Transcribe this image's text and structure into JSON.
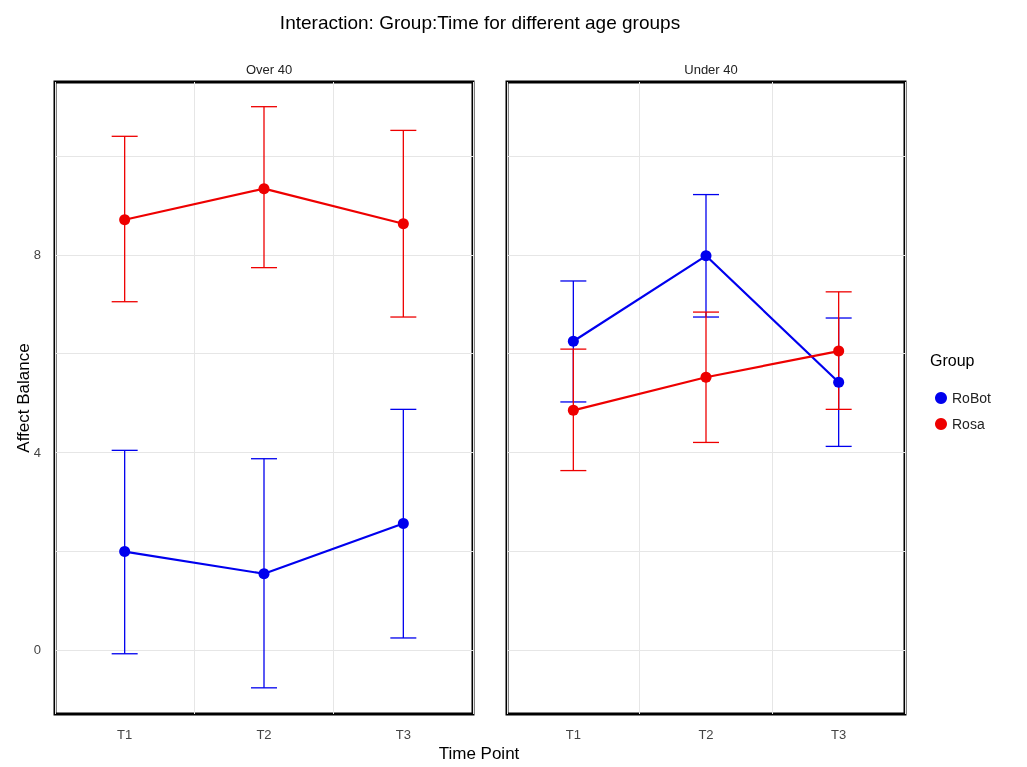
{
  "chart_data": [
    {
      "type": "line",
      "title": "Interaction: Group:Time for different age groups",
      "subtitle": "Over 40",
      "ylabel": "Affect Balance",
      "categories": [
        "T1",
        "T2",
        "T3"
      ],
      "ylim": [
        -1.3,
        11.5
      ],
      "yticks": [
        0,
        {
          "value": 2,
          "label": null
        },
        4,
        {
          "value": 6,
          "label": null
        },
        8,
        {
          "value": 10,
          "label": null
        }
      ],
      "grid": true,
      "marker": "circle",
      "line_style": "solid",
      "series": [
        {
          "color": "#0000ee",
          "values": [
            1.99,
            1.54,
            2.56
          ],
          "errors": [
            [
              -0.08,
              4.04
            ],
            [
              -0.77,
              3.87
            ],
            [
              0.24,
              4.87
            ]
          ]
        },
        {
          "color": "#ee0000",
          "values": [
            8.71,
            9.34,
            8.63
          ],
          "errors": [
            [
              7.05,
              10.4
            ],
            [
              7.74,
              11.0
            ],
            [
              6.74,
              10.52
            ]
          ]
        }
      ]
    },
    {
      "type": "line",
      "subtitle": "Under 40",
      "xlabel": "Time Point",
      "categories": [
        "T1",
        "T2",
        "T3"
      ],
      "ylim": [
        -1.3,
        11.5
      ],
      "yticks": [
        0,
        {
          "value": 2,
          "label": null
        },
        4,
        {
          "value": 6,
          "label": null
        },
        8,
        {
          "value": 10,
          "label": null
        }
      ],
      "tick_labels": "x",
      "grid": true,
      "marker": "circle",
      "line_style": "solid",
      "legend": "right",
      "legend_title": "Group",
      "series": [
        {
          "name": "RoBot",
          "color": "#0000ee",
          "values": [
            6.25,
            7.98,
            5.42
          ],
          "errors": [
            [
              5.02,
              7.47
            ],
            [
              6.74,
              9.22
            ],
            [
              4.12,
              6.72
            ]
          ]
        },
        {
          "name": "Rosa",
          "color": "#ee0000",
          "values": [
            4.85,
            5.52,
            6.05
          ],
          "errors": [
            [
              3.63,
              6.09
            ],
            [
              4.2,
              6.84
            ],
            [
              4.87,
              7.25
            ]
          ]
        }
      ]
    }
  ]
}
